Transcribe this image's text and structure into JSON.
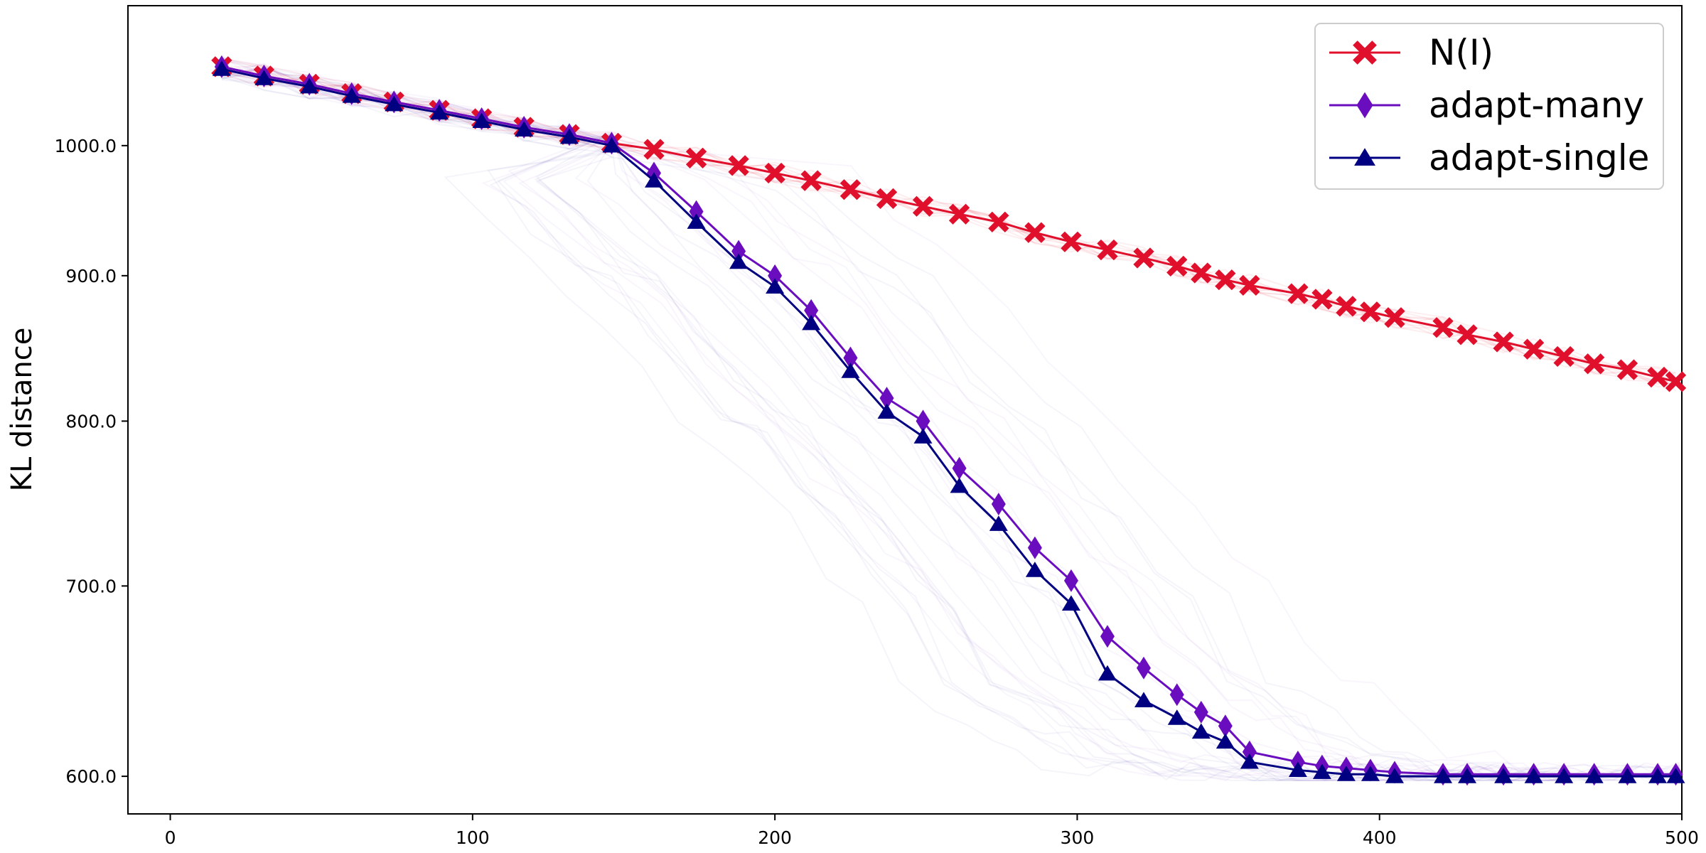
{
  "chart_data": {
    "type": "line",
    "title": "",
    "xlabel": "",
    "ylabel": "KL distance",
    "xlim": [
      -14,
      500
    ],
    "ylim": [
      582,
      1120
    ],
    "y_scale": "log",
    "x_ticks": [
      0,
      100,
      200,
      300,
      400,
      500
    ],
    "x_tick_labels": [
      "0",
      "100",
      "200",
      "300",
      "400",
      "500"
    ],
    "y_ticks": [
      600,
      700,
      800,
      900,
      1000
    ],
    "y_tick_labels": [
      "600.0",
      "700.0",
      "800.0",
      "900.0",
      "1000.0"
    ],
    "grid": false,
    "legend_position": "top-right",
    "series": [
      {
        "name": "N(I)",
        "color": "#e0102c",
        "marker": "x",
        "x": [
          17,
          31,
          46,
          60,
          74,
          89,
          103,
          117,
          132,
          146,
          160,
          174,
          188,
          200,
          212,
          225,
          237,
          249,
          261,
          274,
          286,
          298,
          310,
          322,
          333,
          341,
          349,
          357,
          373,
          381,
          389,
          397,
          405,
          421,
          429,
          441,
          451,
          461,
          471,
          482,
          492,
          498
        ],
        "y": [
          1066,
          1058,
          1051,
          1043,
          1036,
          1029,
          1022,
          1015,
          1009,
          1002,
          997,
          990,
          984,
          978,
          972,
          965,
          958,
          952,
          946,
          940,
          932,
          925,
          919,
          913,
          907,
          902,
          897,
          893,
          887,
          883,
          878,
          874,
          870,
          863,
          858,
          853,
          848,
          843,
          838,
          834,
          829,
          826
        ]
      },
      {
        "name": "adapt-many",
        "color": "#6a0dbf",
        "marker": "thin-diamond",
        "x": [
          17,
          31,
          46,
          60,
          74,
          89,
          103,
          117,
          132,
          146,
          160,
          174,
          188,
          200,
          212,
          225,
          237,
          249,
          261,
          274,
          286,
          298,
          310,
          322,
          333,
          341,
          349,
          357,
          373,
          381,
          389,
          397,
          405,
          421,
          429,
          441,
          451,
          461,
          471,
          482,
          492,
          498
        ],
        "y": [
          1066,
          1058,
          1051,
          1043,
          1036,
          1029,
          1022,
          1015,
          1009,
          1002,
          978,
          948,
          918,
          900,
          875,
          842,
          815,
          800,
          770,
          748,
          722,
          703,
          672,
          655,
          641,
          632,
          625,
          612,
          607,
          605,
          604,
          603,
          602,
          601,
          601,
          601,
          601,
          601,
          601,
          601,
          601,
          601
        ]
      },
      {
        "name": "adapt-single",
        "color": "#000080",
        "marker": "triangle",
        "x": [
          17,
          31,
          46,
          60,
          74,
          89,
          103,
          117,
          132,
          146,
          160,
          174,
          188,
          200,
          212,
          225,
          237,
          249,
          261,
          274,
          286,
          298,
          310,
          322,
          333,
          341,
          349,
          357,
          373,
          381,
          389,
          397,
          405,
          421,
          429,
          441,
          451,
          461,
          471,
          482,
          492,
          498
        ],
        "y": [
          1064,
          1056,
          1049,
          1041,
          1034,
          1027,
          1020,
          1013,
          1007,
          1000,
          972,
          940,
          910,
          892,
          866,
          833,
          806,
          790,
          759,
          736,
          709,
          690,
          652,
          638,
          629,
          622,
          617,
          607,
          603,
          602,
          601,
          601,
          600,
          600,
          600,
          600,
          600,
          600,
          600,
          600,
          600,
          600
        ]
      }
    ]
  }
}
